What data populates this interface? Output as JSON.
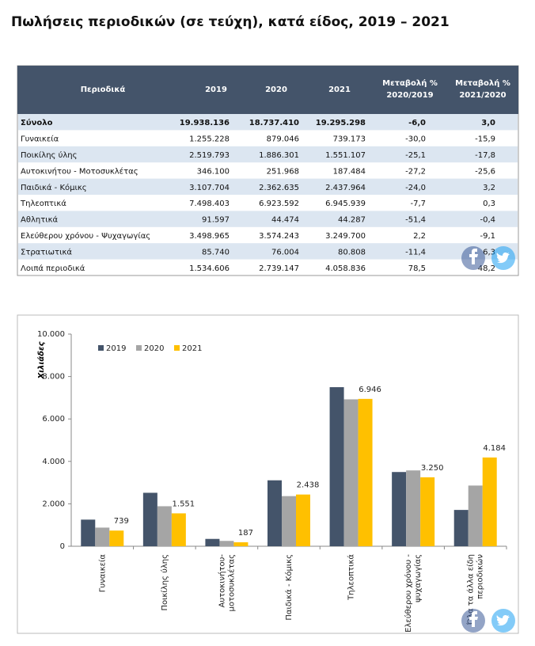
{
  "title": "Πωλήσεις περιοδικών (σε τεύχη), κατά είδος, 2019 – 2021",
  "table": {
    "header": [
      "Περιοδικά",
      "2019",
      "2020",
      "2021",
      [
        "Μεταβολή %",
        "2020/2019"
      ],
      [
        "Μεταβολή %",
        "2021/2020"
      ]
    ],
    "rows": [
      [
        "Σύνολο",
        "19.938.136",
        "18.737.410",
        "19.295.298",
        "-6,0",
        "3,0"
      ],
      [
        "Γυναικεία",
        "1.255.228",
        "879.046",
        "739.173",
        "-30,0",
        "-15,9"
      ],
      [
        "Ποικίλης ύλης",
        "2.519.793",
        "1.886.301",
        "1.551.107",
        "-25,1",
        "-17,8"
      ],
      [
        "Αυτοκινήτου - Μοτοσυκλέτας",
        "346.100",
        "251.968",
        "187.484",
        "-27,2",
        "-25,6"
      ],
      [
        "Παιδικά - Κόμικς",
        "3.107.704",
        "2.362.635",
        "2.437.964",
        "-24,0",
        "3,2"
      ],
      [
        "Τηλεοπτικά",
        "7.498.403",
        "6.923.592",
        "6.945.939",
        "-7,7",
        "0,3"
      ],
      [
        "Αθλητικά",
        "91.597",
        "44.474",
        "44.287",
        "-51,4",
        "-0,4"
      ],
      [
        "Ελεύθερου χρόνου - Ψυχαγωγίας",
        "3.498.965",
        "3.574.243",
        "3.249.700",
        "2,2",
        "-9,1"
      ],
      [
        "Στρατιωτικά",
        "85.740",
        "76.004",
        "80.808",
        "-11,4",
        "6,3"
      ],
      [
        "Λοιπά περιοδικά",
        "1.534.606",
        "2.739.147",
        "4.058.836",
        "78,5",
        "48,2"
      ]
    ]
  },
  "chart_data": {
    "type": "bar",
    "y_label": "Χιλιάδες",
    "categories": [
      [
        "Γυναικεία"
      ],
      [
        "Ποικίλης ύλης"
      ],
      [
        "Αυτοκινήτου-",
        "μοτοσυκλέτας"
      ],
      [
        "Παιδικά - Κόμικς"
      ],
      [
        "Τηλεοπτικά"
      ],
      [
        "Ελεύθερου χρόνου -",
        "ψυχαγωγίας"
      ],
      [
        "Όλα τα άλλα είδη",
        "περιοδικών"
      ]
    ],
    "series": [
      {
        "name": "2019",
        "color": "#44546a",
        "values": [
          1255,
          2520,
          346,
          3108,
          7498,
          3499,
          1712
        ]
      },
      {
        "name": "2020",
        "color": "#a5a5a5",
        "values": [
          879,
          1886,
          252,
          2363,
          6924,
          3574,
          2860
        ]
      },
      {
        "name": "2021",
        "color": "#ffc000",
        "values": [
          739,
          1551,
          187,
          2438,
          6946,
          3250,
          4184
        ],
        "value_labels": [
          "739",
          "1.551",
          "187",
          "2.438",
          "6.946",
          "3.250",
          "4.184"
        ]
      }
    ],
    "ylim": [
      0,
      10000
    ],
    "yticks": [
      0,
      {
        "value": 2000,
        "label": "2.000"
      },
      {
        "value": 4000,
        "label": "4.000"
      },
      {
        "value": 6000,
        "label": "6.000"
      },
      {
        "value": 8000,
        "label": "8.000"
      },
      {
        "value": 10000,
        "label": "10.000"
      }
    ]
  }
}
